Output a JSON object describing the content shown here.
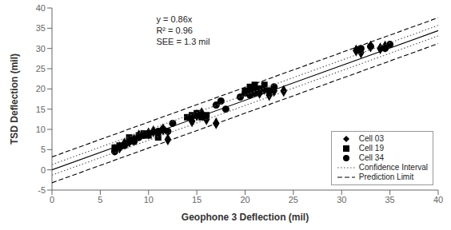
{
  "chart_data": {
    "type": "scatter",
    "xlabel": "Geophone 3 Deflection (mil)",
    "ylabel": "TSD Deflection (mil)",
    "annotation": "y = 0.86x\nR² = 0.96\nSEE = 1.3 mil",
    "xlim": [
      0,
      40
    ],
    "ylim": [
      -5,
      40
    ],
    "xticks": [
      0,
      5,
      10,
      15,
      20,
      25,
      30,
      35,
      40
    ],
    "yticks": [
      -5,
      0,
      5,
      10,
      15,
      20,
      25,
      30,
      35,
      40
    ],
    "grid": false,
    "legend": "lower right",
    "series": [
      {
        "name": "Cell 03",
        "type": "scatter",
        "marker": "diamond",
        "color": "#000000",
        "x": [
          6.5,
          7.0,
          7.5,
          8.0,
          8.5,
          9.0,
          10.0,
          10.5,
          11.0,
          11.5,
          12.0,
          14.5,
          15.0,
          15.5,
          16.0,
          17.0,
          20.5,
          21.0,
          21.5,
          22.0,
          22.5,
          23.0,
          24.0,
          31.5,
          32.0,
          33.0,
          34.0,
          34.5
        ],
        "values": [
          5.0,
          5.5,
          6.5,
          7.0,
          7.5,
          8.5,
          9.0,
          9.5,
          9.0,
          10.0,
          7.5,
          12.0,
          13.5,
          14.0,
          12.5,
          11.5,
          19.5,
          20.0,
          19.0,
          20.0,
          18.5,
          19.5,
          19.5,
          29.5,
          29.0,
          30.5,
          30.0,
          30.5
        ]
      },
      {
        "name": "Cell 19",
        "type": "scatter",
        "marker": "square",
        "color": "#000000",
        "x": [
          6.5,
          7.0,
          8.0,
          9.0,
          9.5,
          10.0,
          11.0,
          14.0,
          14.5,
          15.0,
          15.5,
          16.0,
          20.0,
          20.5,
          21.0,
          21.5,
          22.0
        ],
        "values": [
          5.5,
          6.0,
          8.0,
          8.5,
          9.0,
          8.5,
          8.0,
          13.0,
          13.5,
          14.0,
          13.0,
          13.5,
          19.5,
          20.5,
          21.0,
          20.0,
          21.0
        ]
      },
      {
        "name": "Cell 34",
        "type": "scatter",
        "marker": "circle",
        "color": "#000000",
        "x": [
          6.5,
          7.0,
          7.5,
          8.0,
          8.5,
          9.0,
          9.5,
          10.0,
          11.0,
          11.5,
          12.0,
          12.5,
          17.0,
          17.5,
          18.0,
          19.5,
          20.0,
          20.5,
          21.0,
          21.5,
          22.5,
          23.0,
          32.0,
          33.0,
          34.5,
          35.0
        ],
        "values": [
          4.5,
          5.5,
          6.0,
          7.0,
          7.0,
          8.0,
          8.5,
          9.0,
          9.5,
          10.0,
          9.5,
          11.5,
          16.0,
          17.0,
          15.0,
          18.0,
          19.0,
          18.5,
          19.0,
          20.0,
          19.5,
          20.5,
          30.0,
          30.5,
          30.0,
          31.0
        ]
      },
      {
        "type": "line",
        "line_style": "solid",
        "color": "#000000",
        "x": [
          0,
          40
        ],
        "values": [
          0,
          34.4
        ]
      },
      {
        "name": "Confidence Interval",
        "type": "line",
        "line_style": "dotted",
        "color": "#555555",
        "x": [
          0,
          40
        ],
        "upper": [
          1.3,
          35.7
        ],
        "lower": [
          -1.3,
          33.1
        ]
      },
      {
        "name": "Prediction Limit",
        "type": "line",
        "line_style": "dashed",
        "color": "#000000",
        "x": [
          0,
          40
        ],
        "upper": [
          3.2,
          37.6
        ],
        "lower": [
          -3.2,
          31.2
        ]
      }
    ]
  }
}
